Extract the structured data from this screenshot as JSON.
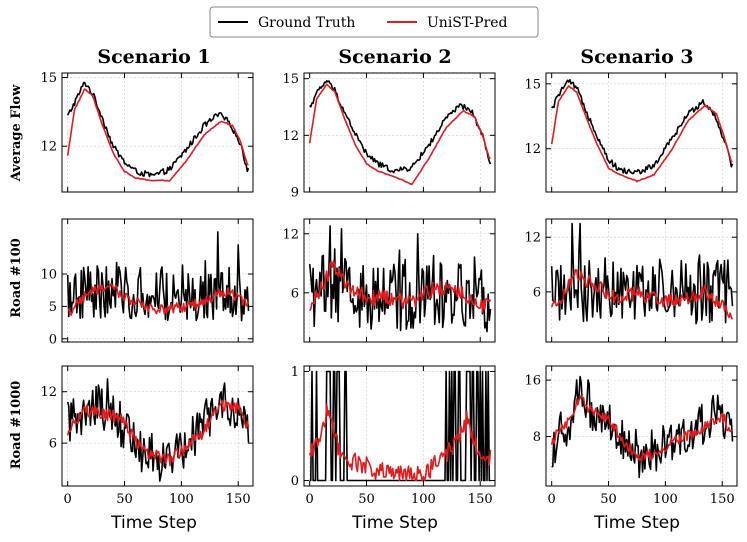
{
  "chart_data": {
    "type": "line",
    "legend": {
      "placement": "top-center",
      "entries": [
        {
          "name": "Ground Truth",
          "color": "#000000"
        },
        {
          "name": "UniST-Pred",
          "color": "#e41a1c"
        }
      ]
    },
    "columns": [
      "Scenario 1",
      "Scenario 2",
      "Scenario 3"
    ],
    "rows": [
      "Average Flow",
      "Road #100",
      "Road #1000"
    ],
    "xlabel": "Time Step",
    "xlim": [
      -5,
      163
    ],
    "xticks": [
      0,
      50,
      100,
      150
    ],
    "x_step": 1,
    "n_points": 160,
    "panels": [
      {
        "scenario": "Scenario 1",
        "row": "Average Flow",
        "ylim": [
          10.0,
          15.2
        ],
        "yticks": [
          12,
          15
        ],
        "kind": "smooth",
        "gt_anchors": [
          [
            0,
            13.3
          ],
          [
            8,
            14.1
          ],
          [
            15,
            14.8
          ],
          [
            22,
            14.3
          ],
          [
            30,
            13.3
          ],
          [
            40,
            12.0
          ],
          [
            50,
            11.3
          ],
          [
            60,
            10.9
          ],
          [
            75,
            10.7
          ],
          [
            90,
            11.0
          ],
          [
            105,
            11.9
          ],
          [
            120,
            12.9
          ],
          [
            133,
            13.4
          ],
          [
            143,
            13.0
          ],
          [
            152,
            12.1
          ],
          [
            158,
            11.0
          ]
        ],
        "pred_anchors": [
          [
            0,
            11.6
          ],
          [
            6,
            13.6
          ],
          [
            15,
            14.5
          ],
          [
            22,
            14.2
          ],
          [
            30,
            13.0
          ],
          [
            40,
            11.7
          ],
          [
            50,
            10.9
          ],
          [
            60,
            10.6
          ],
          [
            75,
            10.5
          ],
          [
            90,
            10.5
          ],
          [
            105,
            11.4
          ],
          [
            120,
            12.5
          ],
          [
            135,
            13.1
          ],
          [
            145,
            12.9
          ],
          [
            152,
            12.2
          ],
          [
            158,
            11.2
          ]
        ],
        "gt_noise": 0.13,
        "pred_noise": 0.02
      },
      {
        "scenario": "Scenario 2",
        "row": "Average Flow",
        "ylim": [
          9.0,
          15.3
        ],
        "yticks": [
          9,
          12,
          15
        ],
        "kind": "smooth",
        "gt_anchors": [
          [
            0,
            13.5
          ],
          [
            8,
            14.4
          ],
          [
            15,
            14.9
          ],
          [
            22,
            14.4
          ],
          [
            30,
            13.3
          ],
          [
            40,
            12.1
          ],
          [
            50,
            11.0
          ],
          [
            60,
            10.5
          ],
          [
            75,
            10.1
          ],
          [
            90,
            10.3
          ],
          [
            105,
            11.5
          ],
          [
            120,
            12.9
          ],
          [
            133,
            13.6
          ],
          [
            143,
            13.2
          ],
          [
            152,
            12.0
          ],
          [
            158,
            10.6
          ]
        ],
        "pred_anchors": [
          [
            0,
            11.6
          ],
          [
            6,
            13.9
          ],
          [
            15,
            14.7
          ],
          [
            22,
            14.3
          ],
          [
            30,
            13.0
          ],
          [
            40,
            11.5
          ],
          [
            50,
            10.5
          ],
          [
            60,
            10.1
          ],
          [
            75,
            9.8
          ],
          [
            90,
            9.4
          ],
          [
            105,
            10.8
          ],
          [
            120,
            12.4
          ],
          [
            135,
            13.3
          ],
          [
            145,
            13.0
          ],
          [
            152,
            12.0
          ],
          [
            158,
            10.8
          ]
        ],
        "gt_noise": 0.15,
        "pred_noise": 0.02
      },
      {
        "scenario": "Scenario 3",
        "row": "Average Flow",
        "ylim": [
          10.0,
          15.5
        ],
        "yticks": [
          12,
          15
        ],
        "kind": "smooth",
        "gt_anchors": [
          [
            0,
            13.8
          ],
          [
            8,
            14.7
          ],
          [
            15,
            15.1
          ],
          [
            22,
            14.8
          ],
          [
            30,
            13.8
          ],
          [
            40,
            12.6
          ],
          [
            50,
            11.5
          ],
          [
            60,
            11.0
          ],
          [
            75,
            10.9
          ],
          [
            90,
            11.2
          ],
          [
            105,
            12.4
          ],
          [
            120,
            13.6
          ],
          [
            133,
            14.2
          ],
          [
            143,
            13.6
          ],
          [
            152,
            12.4
          ],
          [
            158,
            11.3
          ]
        ],
        "pred_anchors": [
          [
            0,
            12.2
          ],
          [
            6,
            14.2
          ],
          [
            15,
            14.9
          ],
          [
            22,
            14.6
          ],
          [
            30,
            13.5
          ],
          [
            40,
            12.2
          ],
          [
            50,
            11.1
          ],
          [
            60,
            10.8
          ],
          [
            75,
            10.5
          ],
          [
            90,
            10.8
          ],
          [
            105,
            11.9
          ],
          [
            120,
            13.3
          ],
          [
            135,
            14.0
          ],
          [
            145,
            13.6
          ],
          [
            152,
            12.5
          ],
          [
            158,
            11.4
          ]
        ],
        "gt_noise": 0.14,
        "pred_noise": 0.02
      },
      {
        "scenario": "Scenario 1",
        "row": "Road #100",
        "ylim": [
          -0.5,
          18.5
        ],
        "yticks": [
          0,
          5,
          10
        ],
        "kind": "noisy",
        "base": 7,
        "gt_amp": 3.2,
        "pred_anchors": [
          [
            0,
            3.8
          ],
          [
            20,
            7.5
          ],
          [
            40,
            7.8
          ],
          [
            60,
            5.5
          ],
          [
            80,
            4.5
          ],
          [
            100,
            4.8
          ],
          [
            120,
            5.8
          ],
          [
            140,
            7.5
          ],
          [
            158,
            5.5
          ]
        ],
        "gt_spikes": [
          [
            132,
            16.5
          ],
          [
            150,
            14.5
          ]
        ]
      },
      {
        "scenario": "Scenario 2",
        "row": "Road #100",
        "ylim": [
          1.0,
          13.5
        ],
        "yticks": [
          6,
          12
        ],
        "kind": "noisy",
        "base": 6.2,
        "gt_amp": 3.0,
        "pred_anchors": [
          [
            0,
            4.3
          ],
          [
            10,
            6.5
          ],
          [
            20,
            8.7
          ],
          [
            30,
            7.0
          ],
          [
            50,
            5.5
          ],
          [
            70,
            5.5
          ],
          [
            90,
            5.0
          ],
          [
            110,
            6.5
          ],
          [
            130,
            6.2
          ],
          [
            145,
            5.0
          ],
          [
            158,
            4.6
          ]
        ],
        "gt_spikes": [
          [
            18,
            12.8
          ],
          [
            28,
            12.5
          ],
          [
            95,
            12.0
          ]
        ]
      },
      {
        "scenario": "Scenario 3",
        "row": "Road #100",
        "ylim": [
          0.5,
          14.0
        ],
        "yticks": [
          6,
          12
        ],
        "kind": "noisy",
        "base": 6.3,
        "gt_amp": 2.8,
        "pred_anchors": [
          [
            0,
            3.8
          ],
          [
            10,
            5.5
          ],
          [
            20,
            8.0
          ],
          [
            35,
            7.0
          ],
          [
            55,
            5.5
          ],
          [
            75,
            5.8
          ],
          [
            95,
            5.2
          ],
          [
            115,
            5.0
          ],
          [
            135,
            6.0
          ],
          [
            150,
            4.5
          ],
          [
            158,
            3.5
          ]
        ],
        "gt_spikes": [
          [
            18,
            13.5
          ],
          [
            25,
            13.5
          ]
        ]
      },
      {
        "scenario": "Scenario 1",
        "row": "Road #1000",
        "ylim": [
          1.0,
          15.0
        ],
        "yticks": [
          6,
          12
        ],
        "kind": "noisy",
        "base": 8,
        "gt_amp": 2.0,
        "pred_anchors": [
          [
            0,
            7.3
          ],
          [
            15,
            9.8
          ],
          [
            30,
            9.5
          ],
          [
            45,
            9.0
          ],
          [
            60,
            6.2
          ],
          [
            75,
            4.5
          ],
          [
            90,
            4.0
          ],
          [
            105,
            5.5
          ],
          [
            120,
            7.5
          ],
          [
            135,
            10.5
          ],
          [
            150,
            10.0
          ],
          [
            158,
            8.0
          ]
        ],
        "gt_spikes": [
          [
            35,
            13.5
          ],
          [
            138,
            13.0
          ]
        ],
        "gt_anchors": [
          [
            0,
            8
          ],
          [
            20,
            10
          ],
          [
            35,
            10
          ],
          [
            50,
            8
          ],
          [
            65,
            5
          ],
          [
            80,
            4
          ],
          [
            95,
            5
          ],
          [
            110,
            7
          ],
          [
            125,
            9
          ],
          [
            138,
            11
          ],
          [
            150,
            10
          ],
          [
            158,
            7
          ]
        ]
      },
      {
        "scenario": "Scenario 2",
        "row": "Road #1000",
        "ylim": [
          -0.05,
          1.05
        ],
        "yticks": [
          0,
          1
        ],
        "kind": "binary",
        "pred_anchors": [
          [
            0,
            0.2
          ],
          [
            8,
            0.4
          ],
          [
            15,
            0.65
          ],
          [
            22,
            0.4
          ],
          [
            30,
            0.2
          ],
          [
            45,
            0.15
          ],
          [
            60,
            0.08
          ],
          [
            80,
            0.05
          ],
          [
            100,
            0.05
          ],
          [
            115,
            0.2
          ],
          [
            130,
            0.35
          ],
          [
            138,
            0.55
          ],
          [
            145,
            0.35
          ],
          [
            152,
            0.2
          ],
          [
            158,
            0.2
          ]
        ],
        "gt_on_ranges": [
          [
            0,
            35
          ],
          [
            115,
            158
          ]
        ]
      },
      {
        "scenario": "Scenario 3",
        "row": "Road #1000",
        "ylim": [
          1.0,
          18.0
        ],
        "yticks": [
          8,
          16
        ],
        "kind": "noisy",
        "base": 9,
        "gt_amp": 2.5,
        "pred_anchors": [
          [
            0,
            7.5
          ],
          [
            15,
            10.0
          ],
          [
            25,
            13.8
          ],
          [
            35,
            11.5
          ],
          [
            50,
            10.5
          ],
          [
            65,
            7.0
          ],
          [
            80,
            5.0
          ],
          [
            95,
            6.0
          ],
          [
            110,
            7.5
          ],
          [
            125,
            8.5
          ],
          [
            140,
            10.0
          ],
          [
            150,
            11.0
          ],
          [
            158,
            8.3
          ]
        ],
        "gt_spikes": [
          [
            25,
            16.5
          ],
          [
            32,
            16.0
          ],
          [
            150,
            12.5
          ]
        ],
        "gt_anchors": [
          [
            0,
            7
          ],
          [
            15,
            10
          ],
          [
            25,
            14
          ],
          [
            35,
            12
          ],
          [
            50,
            10
          ],
          [
            65,
            7
          ],
          [
            80,
            5
          ],
          [
            95,
            6
          ],
          [
            110,
            8
          ],
          [
            125,
            9
          ],
          [
            140,
            10
          ],
          [
            150,
            11
          ],
          [
            158,
            8
          ]
        ]
      }
    ]
  }
}
